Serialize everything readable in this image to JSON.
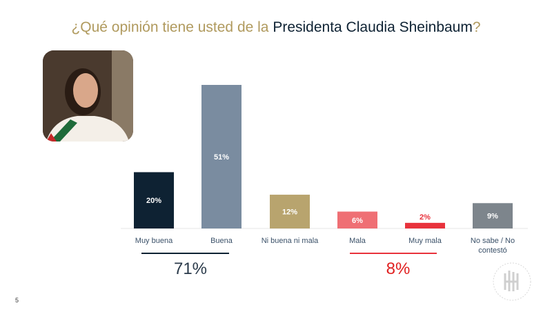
{
  "title": {
    "part1": "¿Qué opinión tiene  usted de la ",
    "highlight": "Presidenta Claudia Sheinbaum",
    "part2": "?"
  },
  "chart_data": {
    "type": "bar",
    "title": "¿Qué opinión tiene usted de la Presidenta Claudia Sheinbaum?",
    "categories": [
      "Muy buena",
      "Buena",
      "Ni buena ni mala",
      "Mala",
      "Muy mala",
      "No sabe / No contestó"
    ],
    "values": [
      20,
      51,
      12,
      6,
      2,
      9
    ],
    "labels": [
      "20%",
      "51%",
      "12%",
      "6%",
      "2%",
      "9%"
    ],
    "colors": [
      "#0e2233",
      "#7a8ca0",
      "#b8a46e",
      "#ef6f74",
      "#e8323c",
      "#7d858c"
    ],
    "ylim": [
      0,
      55
    ]
  },
  "groups": [
    {
      "label": "71%",
      "color": "#0e2233"
    },
    {
      "label": "8%",
      "color": "#e02020"
    }
  ],
  "page_number": "5"
}
